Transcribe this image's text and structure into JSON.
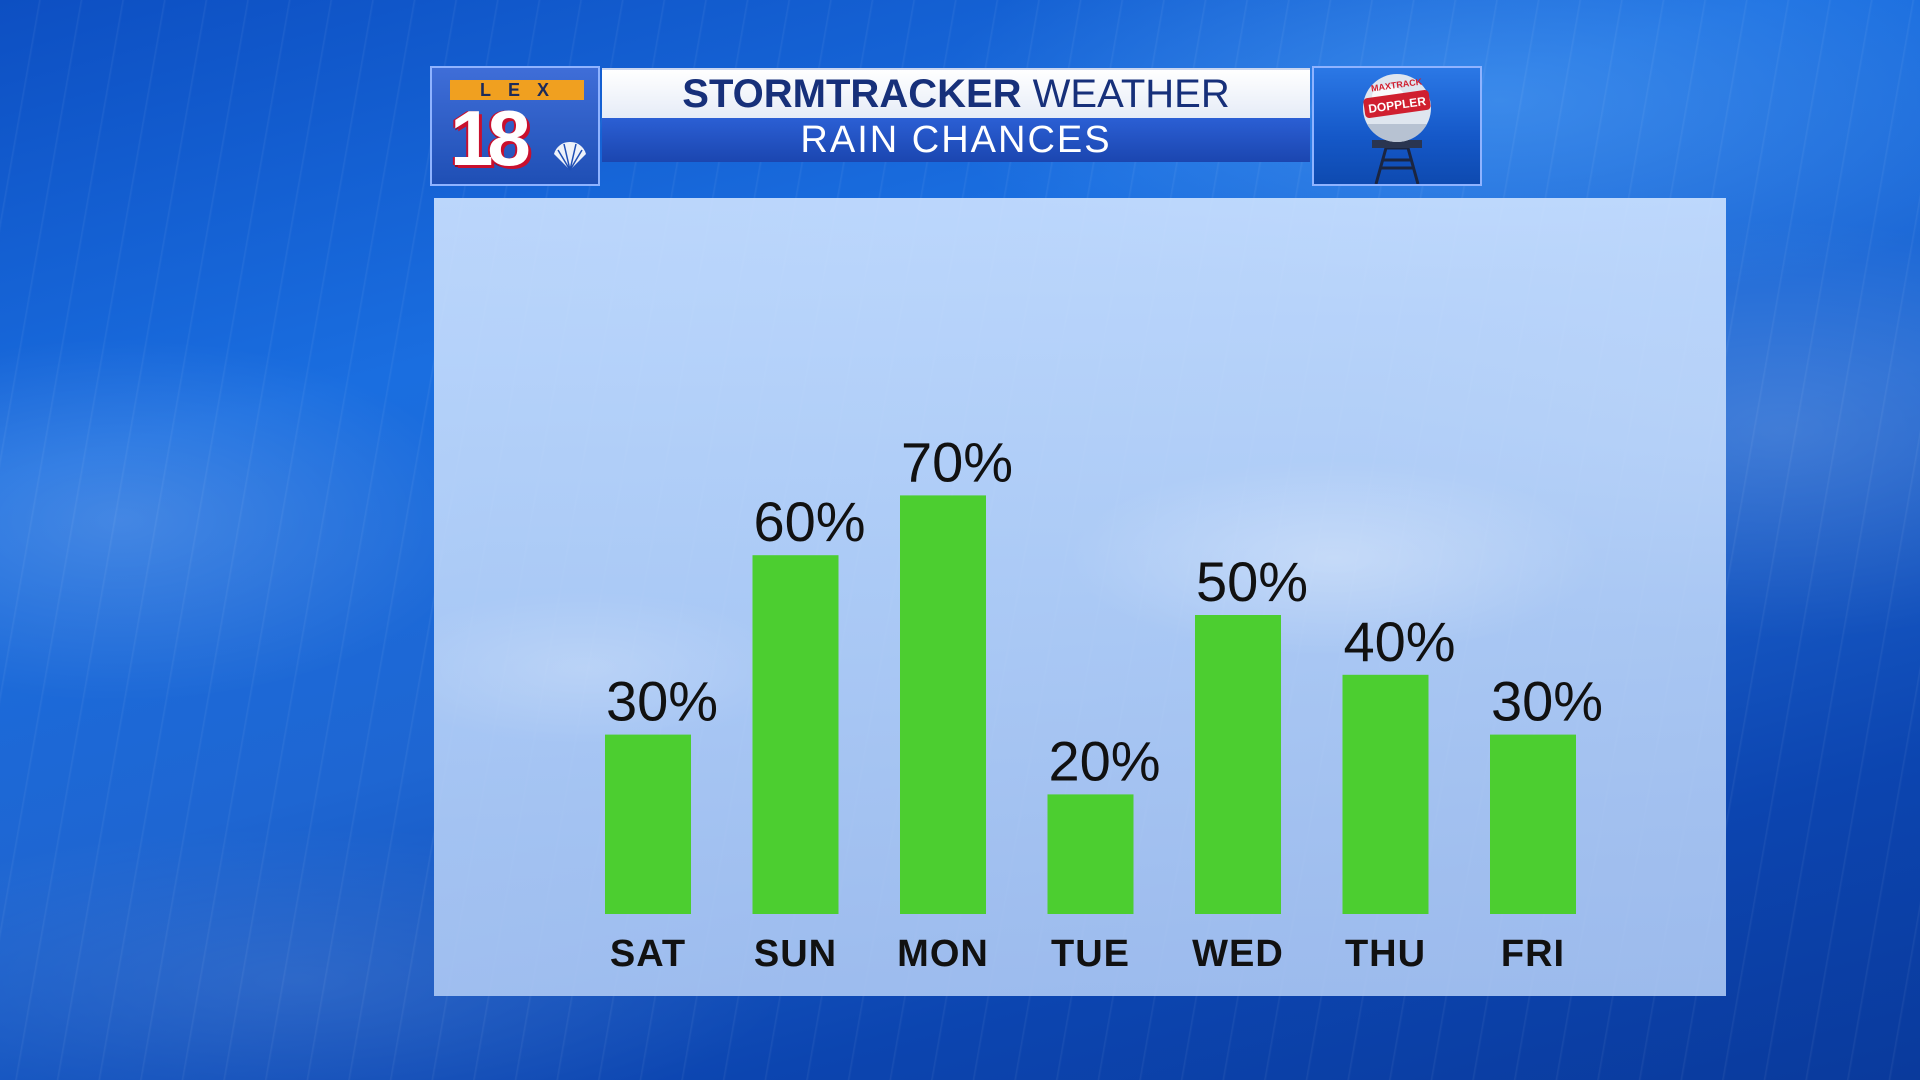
{
  "header": {
    "station_letters": "LEX",
    "station_number": "18",
    "title_bold": "STORMTRACKER",
    "title_regular": "WEATHER",
    "subtitle": "RAIN CHANCES",
    "doppler_text_top": "MAXTRACK",
    "doppler_text_bottom": "DOPPLER"
  },
  "colors": {
    "bar": "#4cce30",
    "header_text": "#17307a",
    "subtitle_bg": "#1b46b0"
  },
  "chart_data": {
    "type": "bar",
    "title": "RAIN CHANCES",
    "categories": [
      "SAT",
      "SUN",
      "MON",
      "TUE",
      "WED",
      "THU",
      "FRI"
    ],
    "values": [
      30,
      60,
      70,
      20,
      50,
      40,
      30
    ],
    "value_labels": [
      "30%",
      "60%",
      "70%",
      "20%",
      "50%",
      "40%",
      "30%"
    ],
    "unit": "%",
    "ylim": [
      0,
      100
    ],
    "grid": false,
    "legend": "none"
  }
}
